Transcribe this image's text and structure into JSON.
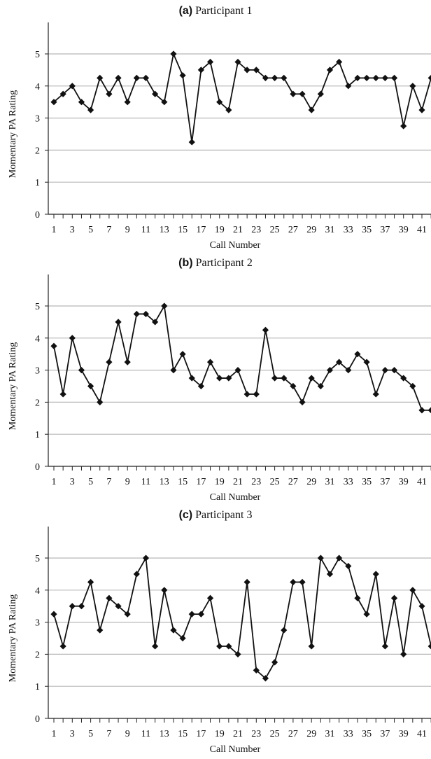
{
  "chart_data": [
    {
      "type": "line",
      "title_letter": "(a)",
      "title": "Participant 1",
      "xlabel": "Call Number",
      "ylabel": "Momentary PA Rating",
      "ylim": [
        0,
        5
      ],
      "yticks": [
        "0",
        "1",
        "2",
        "3",
        "4",
        "5"
      ],
      "xtick_labels": [
        "1",
        "3",
        "5",
        "7",
        "9",
        "11",
        "13",
        "15",
        "17",
        "19",
        "21",
        "23",
        "25",
        "27",
        "29",
        "31",
        "33",
        "35",
        "37",
        "39",
        "41"
      ],
      "grid": true,
      "x": [
        1,
        2,
        3,
        4,
        5,
        6,
        7,
        8,
        9,
        10,
        11,
        12,
        13,
        14,
        15,
        16,
        17,
        18,
        19,
        20,
        21,
        22,
        23,
        24,
        25,
        26,
        27,
        28,
        29,
        30,
        31,
        32,
        33,
        34,
        35,
        36,
        37,
        38,
        39,
        40,
        41,
        42
      ],
      "values": [
        3.5,
        3.75,
        4,
        3.5,
        3.25,
        4.25,
        3.75,
        4.25,
        3.5,
        4.25,
        4.25,
        3.75,
        3.5,
        5,
        4.33,
        2.25,
        4.5,
        4.75,
        3.5,
        3.25,
        4.75,
        4.5,
        4.5,
        4.25,
        4.25,
        4.25,
        3.75,
        3.75,
        3.25,
        3.75,
        4.5,
        4.75,
        4,
        4.25,
        4.25,
        4.25,
        4.25,
        4.25,
        2.75,
        4,
        3.25,
        4.25
      ]
    },
    {
      "type": "line",
      "title_letter": "(b)",
      "title": "Participant 2",
      "xlabel": "Call Number",
      "ylabel": "Momentary PA Rating",
      "ylim": [
        0,
        5
      ],
      "yticks": [
        "0",
        "1",
        "2",
        "3",
        "4",
        "5"
      ],
      "xtick_labels": [
        "1",
        "3",
        "5",
        "7",
        "9",
        "11",
        "13",
        "15",
        "17",
        "19",
        "21",
        "23",
        "25",
        "27",
        "29",
        "31",
        "33",
        "35",
        "37",
        "39",
        "41"
      ],
      "grid": true,
      "x": [
        1,
        2,
        3,
        4,
        5,
        6,
        7,
        8,
        9,
        10,
        11,
        12,
        13,
        14,
        15,
        16,
        17,
        18,
        19,
        20,
        21,
        22,
        23,
        24,
        25,
        26,
        27,
        28,
        29,
        30,
        31,
        32,
        33,
        34,
        35,
        36,
        37,
        38,
        39,
        40,
        41,
        42
      ],
      "values": [
        3.75,
        2.25,
        4,
        3,
        2.5,
        2,
        3.25,
        4.5,
        3.25,
        4.75,
        4.75,
        4.5,
        5,
        3,
        3.5,
        2.75,
        2.5,
        3.25,
        2.75,
        2.75,
        3,
        2.25,
        2.25,
        4.25,
        2.75,
        2.75,
        2.5,
        2,
        2.75,
        2.5,
        3,
        3.25,
        3,
        3.5,
        3.25,
        2.25,
        3,
        3,
        2.75,
        2.5,
        1.75,
        1.75
      ]
    },
    {
      "type": "line",
      "title_letter": "(c)",
      "title": "Participant 3",
      "xlabel": "Call Number",
      "ylabel": "Momentary PA Rating",
      "ylim": [
        0,
        5
      ],
      "yticks": [
        "0",
        "1",
        "2",
        "3",
        "4",
        "5"
      ],
      "xtick_labels": [
        "1",
        "3",
        "5",
        "7",
        "9",
        "11",
        "13",
        "15",
        "17",
        "19",
        "21",
        "23",
        "25",
        "27",
        "29",
        "31",
        "33",
        "35",
        "37",
        "39",
        "41"
      ],
      "grid": true,
      "x": [
        1,
        2,
        3,
        4,
        5,
        6,
        7,
        8,
        9,
        10,
        11,
        12,
        13,
        14,
        15,
        16,
        17,
        18,
        19,
        20,
        21,
        22,
        23,
        24,
        25,
        26,
        27,
        28,
        29,
        30,
        31,
        32,
        33,
        34,
        35,
        36,
        37,
        38,
        39,
        40,
        41,
        42
      ],
      "values": [
        3.25,
        2.25,
        3.5,
        3.5,
        4.25,
        2.75,
        3.75,
        3.5,
        3.25,
        4.5,
        5,
        2.25,
        4,
        2.75,
        2.5,
        3.25,
        3.25,
        3.75,
        2.25,
        2.25,
        2,
        4.25,
        1.5,
        1.25,
        1.75,
        2.75,
        4.25,
        4.25,
        2.25,
        5,
        4.5,
        5,
        4.75,
        3.75,
        3.25,
        4.5,
        2.25,
        3.75,
        2,
        4,
        3.5,
        2.25
      ]
    }
  ]
}
